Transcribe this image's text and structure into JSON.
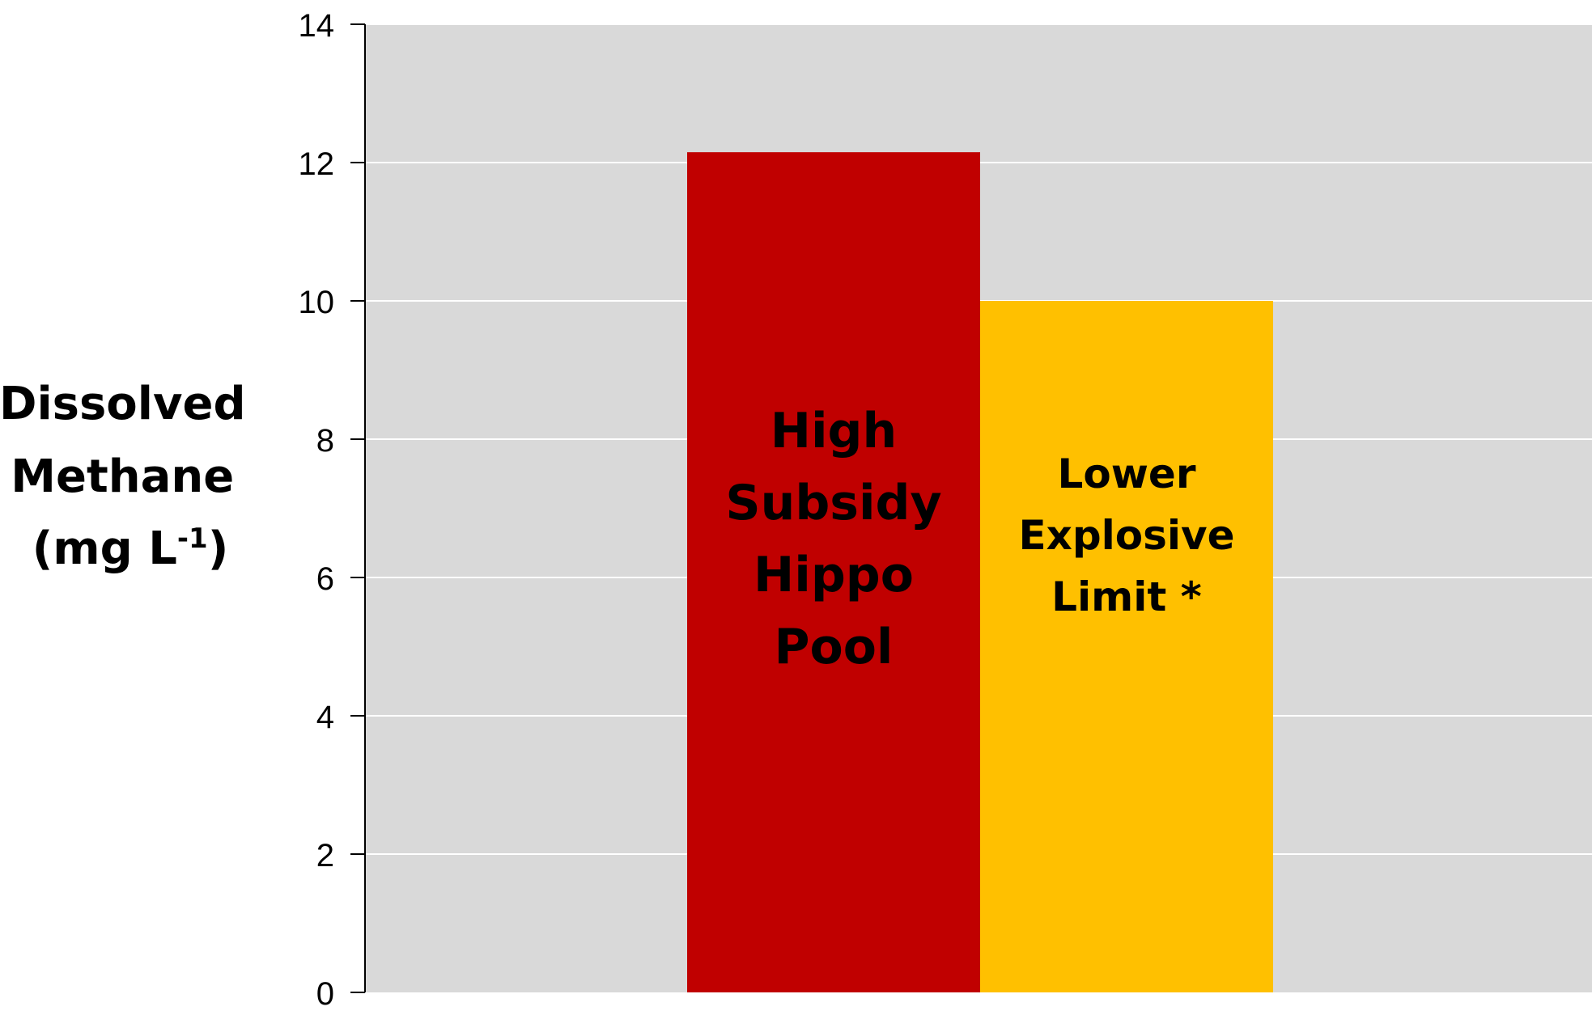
{
  "chart_data": {
    "type": "bar",
    "categories": [
      "High Subsidy Hippo Pool",
      "Lower Explosive Limit *"
    ],
    "values": [
      12.15,
      10
    ],
    "bar_label_lines": [
      [
        "High",
        "Subsidy",
        "Hippo",
        "Pool"
      ],
      [
        "Lower",
        "Explosive",
        "Limit *"
      ]
    ],
    "colors": [
      "#c00000",
      "#ffc000"
    ],
    "title": "",
    "xlabel": "",
    "ylabel_lines": [
      "Dissolved",
      "Methane",
      "(mg L",
      "-1",
      ")"
    ],
    "ylim": [
      0,
      14
    ],
    "yticks": [
      0,
      2,
      4,
      6,
      8,
      10,
      12,
      14
    ],
    "ytick_labels": [
      "0",
      "2",
      "4",
      "6",
      "8",
      "10",
      "12",
      "14"
    ],
    "grid": true,
    "grid_color": "#ffffff",
    "plot_background": "#d9d9d9",
    "legend": "none"
  }
}
